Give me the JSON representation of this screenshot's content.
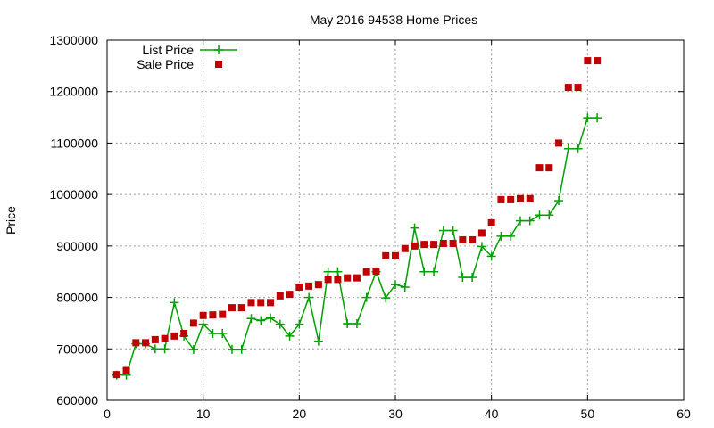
{
  "chart_data": {
    "type": "line",
    "title": "May 2016 94538 Home Prices",
    "xlabel": "",
    "ylabel": "Price",
    "xlim": [
      0,
      60
    ],
    "ylim": [
      600000,
      1300000
    ],
    "x_ticks": [
      0,
      10,
      20,
      30,
      40,
      50,
      60
    ],
    "y_ticks": [
      600000,
      700000,
      800000,
      900000,
      1000000,
      1100000,
      1200000,
      1300000
    ],
    "grid": true,
    "legend_position": "top-left",
    "series": [
      {
        "name": "List Price",
        "style": "line-points",
        "marker": "plus",
        "color": "#00a000",
        "x": [
          1,
          2,
          3,
          4,
          5,
          6,
          7,
          8,
          9,
          10,
          11,
          12,
          13,
          14,
          15,
          16,
          17,
          18,
          19,
          20,
          21,
          22,
          23,
          24,
          25,
          26,
          27,
          28,
          29,
          30,
          31,
          32,
          33,
          34,
          35,
          36,
          37,
          38,
          39,
          40,
          41,
          42,
          43,
          44,
          45,
          46,
          47,
          48,
          49,
          50,
          51
        ],
        "values": [
          649000,
          649000,
          710000,
          710000,
          700000,
          700000,
          790000,
          725000,
          699000,
          748000,
          730000,
          730000,
          699000,
          699000,
          759000,
          755000,
          760000,
          748000,
          725000,
          748000,
          800000,
          715000,
          850000,
          850000,
          749000,
          749000,
          800000,
          850000,
          799000,
          825000,
          820000,
          935000,
          850000,
          850000,
          930000,
          930000,
          839000,
          839000,
          899000,
          880000,
          919000,
          919000,
          949000,
          949000,
          960000,
          960000,
          988000,
          1089000,
          1089000,
          1149000,
          1149000
        ]
      },
      {
        "name": "Sale Price",
        "style": "points",
        "marker": "square",
        "color": "#c00000",
        "x": [
          1,
          2,
          3,
          4,
          5,
          6,
          7,
          8,
          9,
          10,
          11,
          12,
          13,
          14,
          15,
          16,
          17,
          18,
          19,
          20,
          21,
          22,
          23,
          24,
          25,
          26,
          27,
          28,
          29,
          30,
          31,
          32,
          33,
          34,
          35,
          36,
          37,
          38,
          39,
          40,
          41,
          42,
          43,
          44,
          45,
          46,
          47,
          48,
          49,
          50,
          51
        ],
        "values": [
          650000,
          658000,
          712000,
          712000,
          718000,
          720000,
          725000,
          730000,
          750000,
          765000,
          766000,
          767000,
          780000,
          780000,
          790000,
          790000,
          790000,
          803000,
          806000,
          820000,
          822000,
          825000,
          835000,
          835000,
          838000,
          838000,
          850000,
          851000,
          881000,
          881000,
          895000,
          900000,
          903000,
          903000,
          905000,
          905000,
          912000,
          912000,
          925000,
          945000,
          990000,
          990000,
          992000,
          992000,
          1052000,
          1052000,
          1100000,
          1208000,
          1208000,
          1260000,
          1260000
        ]
      }
    ]
  }
}
